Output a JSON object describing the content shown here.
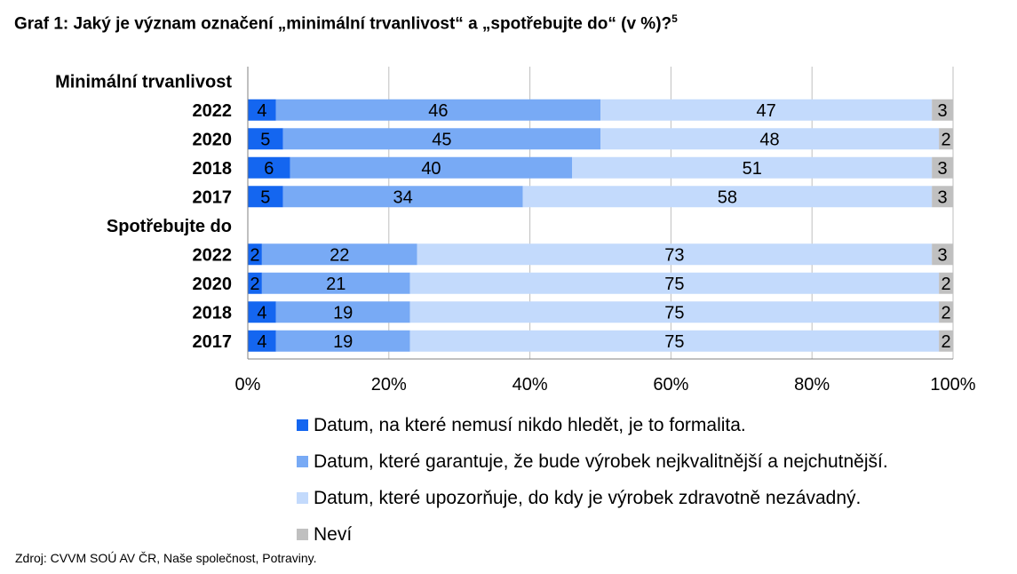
{
  "title": "Graf 1: Jaký je význam označení „minimální trvanlivost“ a „spotřebujte do“ (v %)?",
  "title_footnote": "5",
  "source": "Zdroj: CVVM SOÚ AV ČR, Naše společnost, Potraviny.",
  "chart_data": {
    "type": "bar",
    "orientation": "horizontal",
    "stacked": true,
    "x_ticks": [
      "0%",
      "20%",
      "40%",
      "60%",
      "80%",
      "100%"
    ],
    "xlim": [
      0,
      100
    ],
    "grid": true,
    "legend_position": "bottom",
    "groups": [
      {
        "label": "Minimální trvanlivost",
        "rows": [
          {
            "label": "2022",
            "values": [
              4,
              46,
              47,
              3
            ]
          },
          {
            "label": "2020",
            "values": [
              5,
              45,
              48,
              2
            ]
          },
          {
            "label": "2018",
            "values": [
              6,
              40,
              51,
              3
            ]
          },
          {
            "label": "2017",
            "values": [
              5,
              34,
              58,
              3
            ]
          }
        ]
      },
      {
        "label": "Spotřebujte do",
        "rows": [
          {
            "label": "2022",
            "values": [
              2,
              22,
              73,
              3
            ]
          },
          {
            "label": "2020",
            "values": [
              2,
              21,
              75,
              2
            ]
          },
          {
            "label": "2018",
            "values": [
              4,
              19,
              75,
              2
            ]
          },
          {
            "label": "2017",
            "values": [
              4,
              19,
              75,
              2
            ]
          }
        ]
      }
    ],
    "series": [
      {
        "name": "Datum, na které nemusí nikdo hledět, je to formalita.",
        "color": "#1466f0"
      },
      {
        "name": "Datum, které garantuje, že bude výrobek nejkvalitnější a nejchutnější.",
        "color": "#78aaf5"
      },
      {
        "name": "Datum, které upozorňuje, do kdy je výrobek zdravotně nezávadný.",
        "color": "#c3dafc"
      },
      {
        "name": "Neví",
        "color": "#c0c0c0"
      }
    ]
  }
}
